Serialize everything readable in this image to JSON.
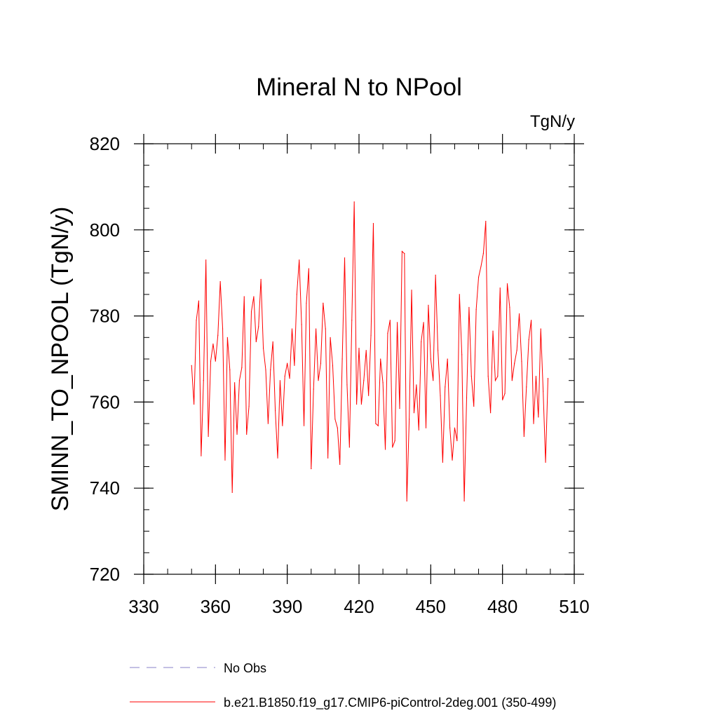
{
  "colors": {
    "series": "#ff0000",
    "obs": "#8a82c8",
    "axis": "#000000"
  },
  "chart_data": {
    "type": "line",
    "title": "Mineral N to NPool",
    "units": "TgN/y",
    "ylabel": "SMINN_TO_NPOOL  (TgN/y)",
    "xlabel": "",
    "xlim": [
      330,
      510
    ],
    "ylim": [
      720,
      820
    ],
    "xticks": [
      330,
      360,
      390,
      420,
      450,
      480,
      510
    ],
    "yticks": [
      720,
      740,
      760,
      780,
      800,
      820
    ],
    "x_minor_step": 10,
    "y_minor_step": 5,
    "legend": [
      {
        "label": "No Obs",
        "style": "dashed",
        "color": "#8a82c8"
      },
      {
        "label": "b.e21.B1850.f19_g17.CMIP6-piControl-2deg.001 (350-499)",
        "style": "solid",
        "color": "#ff0000"
      }
    ],
    "series": [
      {
        "name": "b.e21.B1850.f19_g17.CMIP6-piControl-2deg.001 (350-499)",
        "x_start": 350,
        "x_step": 1,
        "values": [
          768.5,
          759.5,
          779,
          783.5,
          747.5,
          765,
          793,
          752,
          769.5,
          773.5,
          769.5,
          775.5,
          788,
          777,
          746.5,
          775,
          767.5,
          739,
          764.5,
          752.5,
          765,
          768,
          784.5,
          752.5,
          759,
          781,
          784.5,
          774,
          777.5,
          788.5,
          772.5,
          767.5,
          755,
          767.5,
          774,
          758,
          747,
          765,
          754.5,
          766,
          769,
          765.5,
          777,
          768.5,
          785,
          793,
          778,
          754.5,
          783,
          791,
          744.5,
          763,
          777,
          765,
          769,
          783,
          777,
          747,
          775,
          768.5,
          756,
          754,
          745.5,
          770,
          793.5,
          764,
          749.5,
          779,
          806.5,
          759.5,
          772.5,
          759.5,
          765,
          772,
          761.5,
          775.5,
          801.5,
          755,
          754.5,
          770,
          764.5,
          749,
          776,
          779,
          749.5,
          751,
          778.5,
          758.5,
          795,
          794.5,
          737,
          756,
          786,
          757.5,
          764,
          753.5,
          774,
          778.5,
          754,
          782.5,
          770,
          765,
          789.5,
          772,
          761.5,
          746,
          763.5,
          770,
          754,
          746.5,
          754,
          751,
          785,
          771,
          737,
          761,
          782,
          766,
          759,
          781.5,
          789,
          791.5,
          794.5,
          802,
          766,
          757.5,
          776.5,
          765,
          766,
          786.5,
          760.5,
          762,
          787.5,
          782,
          765,
          769,
          772,
          780.5,
          769.5,
          752,
          763.5,
          774.5,
          779,
          755,
          766,
          756.5,
          777,
          762.5,
          746,
          765.5
        ]
      }
    ]
  }
}
